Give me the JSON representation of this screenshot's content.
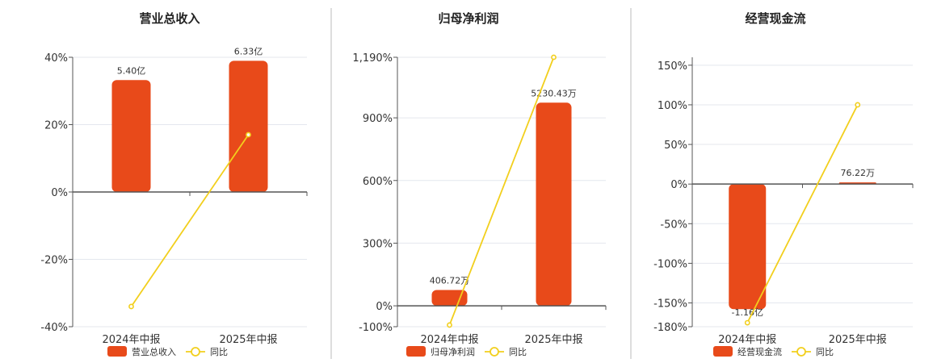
{
  "colors": {
    "bar": "#E84A1A",
    "line": "#F2CF1D",
    "grid": "#E4E7EE",
    "axis": "#555555",
    "divider": "#BBBBBB"
  },
  "chart_data": [
    {
      "type": "bar",
      "title": "营业总收入",
      "categories": [
        "2024年中报",
        "2025年中报"
      ],
      "bar_series": {
        "name": "营业总收入",
        "values": [
          5.4,
          6.33
        ],
        "labels": [
          "5.40亿",
          "6.33亿"
        ],
        "unit": "亿"
      },
      "line_series": {
        "name": "同比",
        "values": [
          -34,
          17
        ],
        "unit": "%"
      },
      "y_axis": {
        "min": -40,
        "max": 40,
        "ticks": [
          40,
          20,
          0,
          -20,
          -40
        ],
        "tick_labels": [
          "40%",
          "20%",
          "0%",
          "-20%",
          "-40%"
        ]
      },
      "bar_max": 6.5,
      "legend": [
        "营业总收入",
        "同比"
      ],
      "legend_position": "bottom",
      "grid": true
    },
    {
      "type": "bar",
      "title": "归母净利润",
      "categories": [
        "2024年中报",
        "2025年中报"
      ],
      "bar_series": {
        "name": "归母净利润",
        "values": [
          406.72,
          5230.43
        ],
        "labels": [
          "406.72万",
          "5230.43万"
        ],
        "unit": "万"
      },
      "line_series": {
        "name": "同比",
        "values": [
          -92,
          1190
        ],
        "unit": "%"
      },
      "y_axis": {
        "min": -100,
        "max": 1190,
        "ticks": [
          1190,
          900,
          600,
          300,
          0,
          -100
        ],
        "tick_labels": [
          "1,190%",
          "900%",
          "600%",
          "300%",
          "0%",
          "-100%"
        ]
      },
      "bar_max": 6400,
      "legend": [
        "归母净利润",
        "同比"
      ],
      "legend_position": "bottom",
      "grid": true
    },
    {
      "type": "bar",
      "title": "经营现金流",
      "categories": [
        "2024年中报",
        "2025年中报"
      ],
      "bar_series": {
        "name": "经营现金流",
        "values": [
          -11600,
          76.22
        ],
        "labels": [
          "-1.16亿",
          "76.22万"
        ],
        "unit": "万"
      },
      "line_series": {
        "name": "同比",
        "values": [
          -175,
          100
        ],
        "unit": "%"
      },
      "y_axis": {
        "min": -180,
        "max": 160,
        "ticks": [
          150,
          100,
          50,
          0,
          -50,
          -100,
          -150,
          -180
        ],
        "tick_labels": [
          "150%",
          "100%",
          "50%",
          "0%",
          "-50%",
          "-100%",
          "-150%",
          "-180%"
        ]
      },
      "bar_max": 11760,
      "legend": [
        "经营现金流",
        "同比"
      ],
      "legend_position": "bottom",
      "grid": true
    }
  ]
}
